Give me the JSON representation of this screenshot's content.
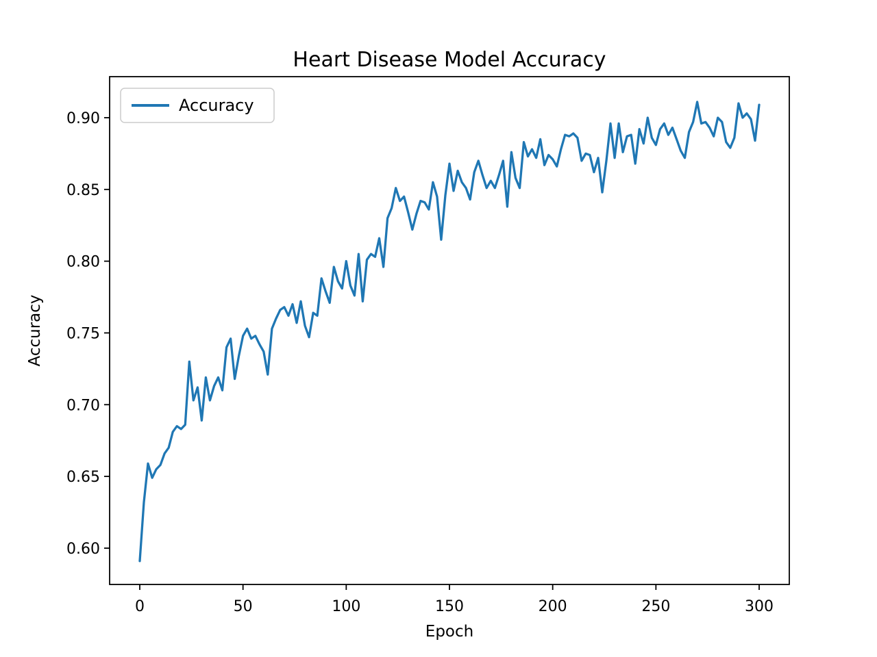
{
  "figure": {
    "background": "#ffffff",
    "title": "Heart Disease Model Accuracy"
  },
  "chart_data": {
    "type": "line",
    "title": "Heart Disease Model Accuracy",
    "xlabel": "Epoch",
    "ylabel": "Accuracy",
    "xlim": [
      -14.6,
      314.6
    ],
    "ylim": [
      0.5747,
      0.9286
    ],
    "grid": false,
    "x_ticks": [
      0,
      50,
      100,
      150,
      200,
      250,
      300
    ],
    "x_tick_labels": [
      "0",
      "50",
      "100",
      "150",
      "200",
      "250",
      "300"
    ],
    "y_ticks": [
      0.6,
      0.65,
      0.7,
      0.75,
      0.8,
      0.85,
      0.9
    ],
    "y_tick_labels": [
      "0.60",
      "0.65",
      "0.70",
      "0.75",
      "0.80",
      "0.85",
      "0.90"
    ],
    "legend": {
      "position": "upper left",
      "entries": [
        "Accuracy"
      ]
    },
    "line_color": "#1f77b4",
    "axis_color": "#000000",
    "legend_border_color": "#cccccc",
    "series": [
      {
        "name": "Accuracy",
        "x": [
          0,
          2,
          4,
          6,
          8,
          10,
          12,
          14,
          16,
          18,
          20,
          22,
          24,
          26,
          28,
          30,
          32,
          34,
          36,
          38,
          40,
          42,
          44,
          46,
          48,
          50,
          52,
          54,
          56,
          58,
          60,
          62,
          64,
          66,
          68,
          70,
          72,
          74,
          76,
          78,
          80,
          82,
          84,
          86,
          88,
          90,
          92,
          94,
          96,
          98,
          100,
          102,
          104,
          106,
          108,
          110,
          112,
          114,
          116,
          118,
          120,
          122,
          124,
          126,
          128,
          130,
          132,
          134,
          136,
          138,
          140,
          142,
          144,
          146,
          148,
          150,
          152,
          154,
          156,
          158,
          160,
          162,
          164,
          166,
          168,
          170,
          172,
          174,
          176,
          178,
          180,
          182,
          184,
          186,
          188,
          190,
          192,
          194,
          196,
          198,
          200,
          202,
          204,
          206,
          208,
          210,
          212,
          214,
          216,
          218,
          220,
          222,
          224,
          226,
          228,
          230,
          232,
          234,
          236,
          238,
          240,
          242,
          244,
          246,
          248,
          250,
          252,
          254,
          256,
          258,
          260,
          262,
          264,
          266,
          268,
          270,
          272,
          274,
          276,
          278,
          280,
          282,
          284,
          286,
          288,
          290,
          292,
          294,
          296,
          298,
          300
        ],
        "values": [
          0.591,
          0.632,
          0.659,
          0.649,
          0.655,
          0.658,
          0.666,
          0.67,
          0.681,
          0.685,
          0.683,
          0.686,
          0.73,
          0.703,
          0.712,
          0.689,
          0.719,
          0.703,
          0.713,
          0.719,
          0.71,
          0.74,
          0.746,
          0.718,
          0.734,
          0.748,
          0.753,
          0.746,
          0.748,
          0.742,
          0.737,
          0.721,
          0.753,
          0.76,
          0.766,
          0.768,
          0.762,
          0.77,
          0.757,
          0.772,
          0.755,
          0.747,
          0.764,
          0.762,
          0.788,
          0.779,
          0.771,
          0.796,
          0.786,
          0.781,
          0.8,
          0.783,
          0.776,
          0.805,
          0.772,
          0.801,
          0.805,
          0.803,
          0.816,
          0.796,
          0.83,
          0.837,
          0.851,
          0.842,
          0.845,
          0.834,
          0.822,
          0.833,
          0.842,
          0.841,
          0.836,
          0.855,
          0.845,
          0.815,
          0.846,
          0.868,
          0.849,
          0.863,
          0.855,
          0.851,
          0.843,
          0.862,
          0.87,
          0.86,
          0.851,
          0.856,
          0.851,
          0.86,
          0.87,
          0.838,
          0.876,
          0.858,
          0.851,
          0.883,
          0.873,
          0.878,
          0.872,
          0.885,
          0.867,
          0.874,
          0.871,
          0.866,
          0.878,
          0.888,
          0.887,
          0.889,
          0.886,
          0.87,
          0.875,
          0.874,
          0.862,
          0.872,
          0.848,
          0.87,
          0.896,
          0.872,
          0.896,
          0.876,
          0.887,
          0.888,
          0.868,
          0.892,
          0.882,
          0.9,
          0.886,
          0.881,
          0.892,
          0.896,
          0.888,
          0.893,
          0.885,
          0.877,
          0.872,
          0.89,
          0.897,
          0.911,
          0.896,
          0.897,
          0.893,
          0.887,
          0.9,
          0.897,
          0.883,
          0.879,
          0.886,
          0.91,
          0.9,
          0.903,
          0.899,
          0.884,
          0.909
        ]
      }
    ]
  }
}
